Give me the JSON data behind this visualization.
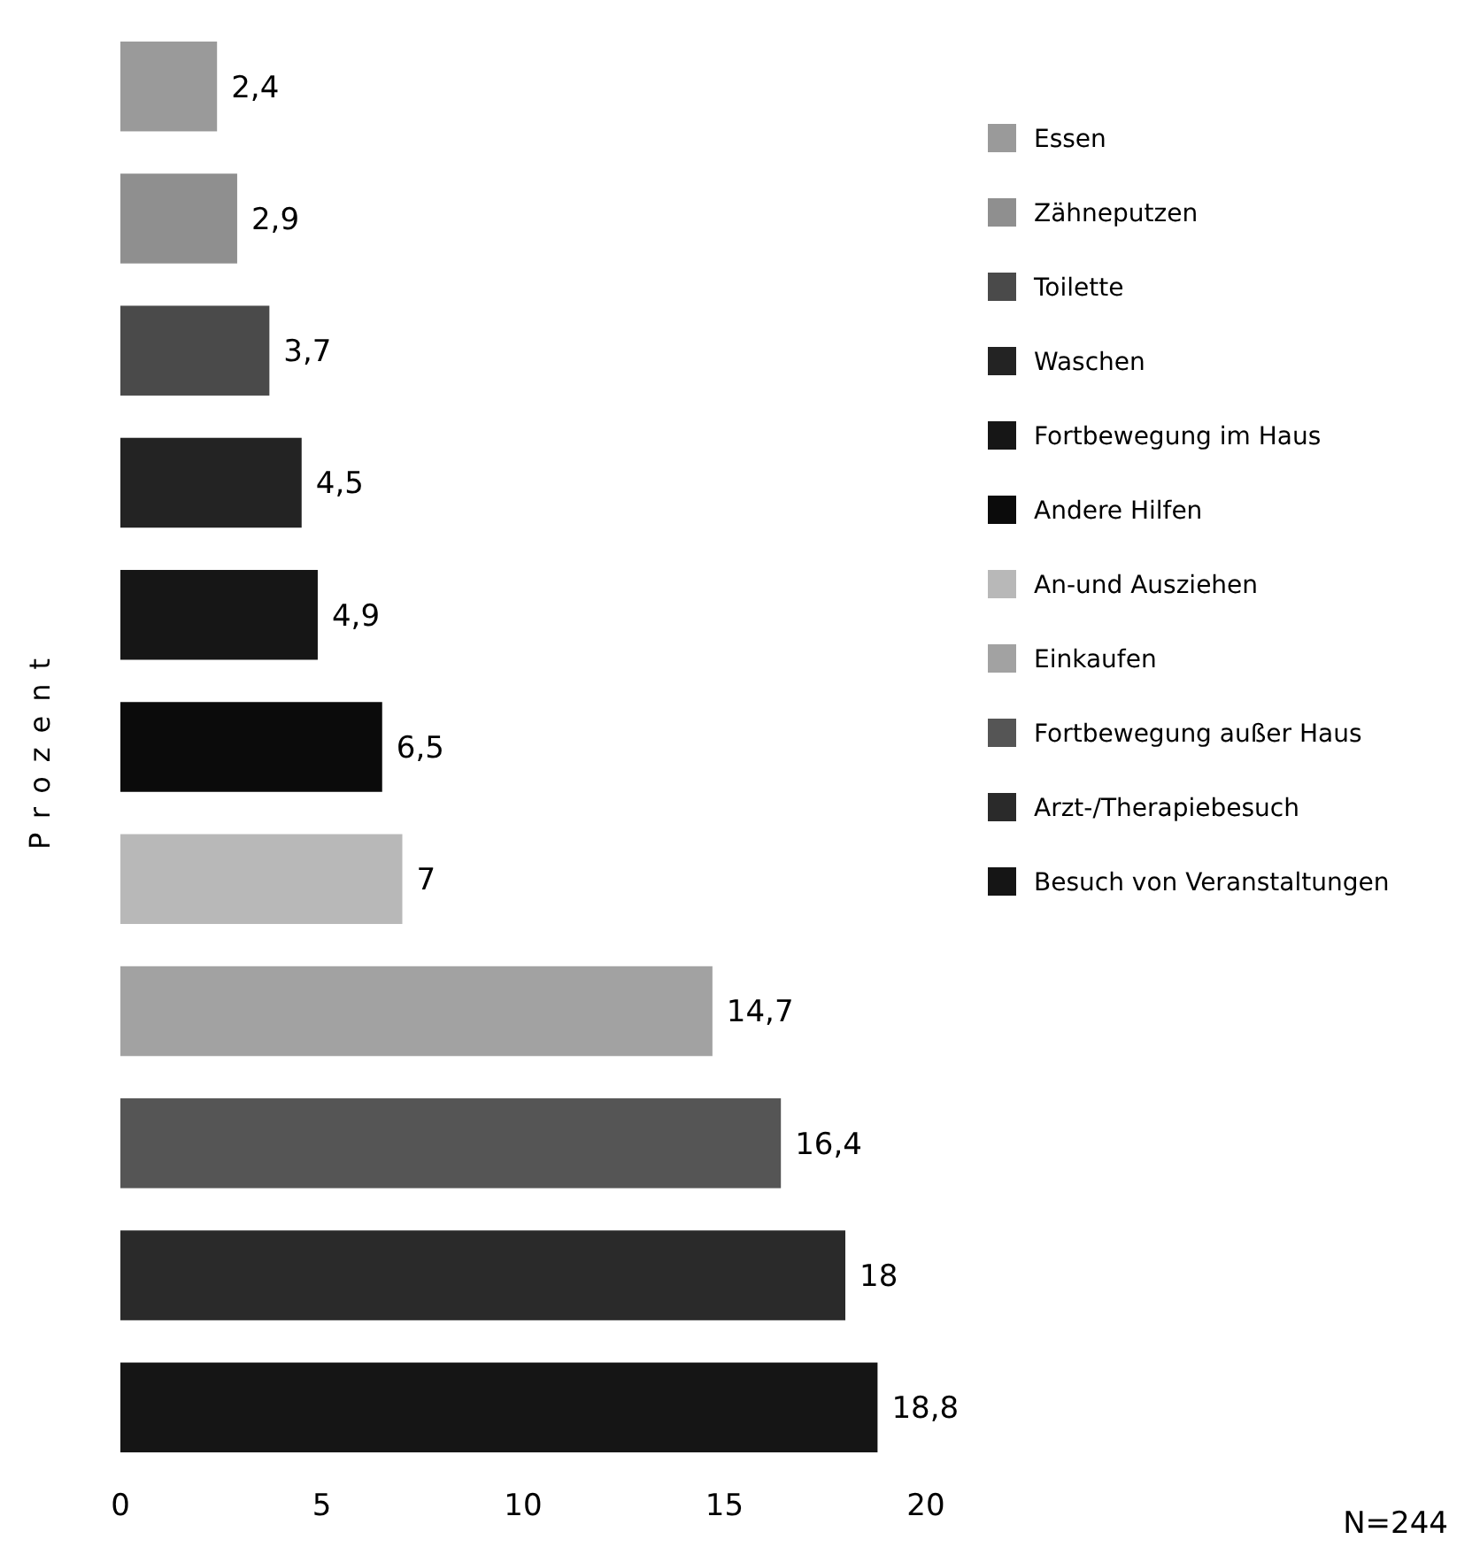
{
  "chart_data": {
    "type": "bar",
    "orientation": "horizontal",
    "stacked": true,
    "ylabel": "Prozent",
    "categories": [
      null,
      null,
      null,
      null,
      null,
      null,
      null,
      null,
      null,
      null,
      null
    ],
    "series": [
      {
        "name": "Essen",
        "color": "#9a9a9a",
        "values": [
          2.4,
          null,
          null,
          null,
          null,
          null,
          null,
          null,
          null,
          null,
          null
        ],
        "value_labels": [
          "2,4",
          null,
          null,
          null,
          null,
          null,
          null,
          null,
          null,
          null,
          null
        ]
      },
      {
        "name": "Zähneputzen",
        "color": "#8f8f8f",
        "values": [
          null,
          2.9,
          null,
          null,
          null,
          null,
          null,
          null,
          null,
          null,
          null
        ],
        "value_labels": [
          null,
          "2,9",
          null,
          null,
          null,
          null,
          null,
          null,
          null,
          null,
          null
        ]
      },
      {
        "name": "Toilette",
        "color": "#4a4a4a",
        "values": [
          null,
          null,
          3.7,
          null,
          null,
          null,
          null,
          null,
          null,
          null,
          null
        ],
        "value_labels": [
          null,
          null,
          "3,7",
          null,
          null,
          null,
          null,
          null,
          null,
          null,
          null
        ]
      },
      {
        "name": "Waschen",
        "color": "#232323",
        "values": [
          null,
          null,
          null,
          4.5,
          null,
          null,
          null,
          null,
          null,
          null,
          null
        ],
        "value_labels": [
          null,
          null,
          null,
          "4,5",
          null,
          null,
          null,
          null,
          null,
          null,
          null
        ]
      },
      {
        "name": "Fortbewegung im Haus",
        "color": "#161616",
        "values": [
          null,
          null,
          null,
          null,
          4.9,
          null,
          null,
          null,
          null,
          null,
          null
        ],
        "value_labels": [
          null,
          null,
          null,
          null,
          "4,9",
          null,
          null,
          null,
          null,
          null,
          null
        ]
      },
      {
        "name": "Andere Hilfen",
        "color": "#0b0b0b",
        "values": [
          null,
          null,
          null,
          null,
          null,
          6.5,
          null,
          null,
          null,
          null,
          null
        ],
        "value_labels": [
          null,
          null,
          null,
          null,
          null,
          "6,5",
          null,
          null,
          null,
          null,
          null
        ]
      },
      {
        "name": "An-und Ausziehen",
        "color": "#b8b8b8",
        "values": [
          null,
          null,
          null,
          null,
          null,
          null,
          7,
          null,
          null,
          null,
          null
        ],
        "value_labels": [
          null,
          null,
          null,
          null,
          null,
          null,
          "7",
          null,
          null,
          null,
          null
        ]
      },
      {
        "name": "Einkaufen",
        "color": "#a2a2a2",
        "values": [
          null,
          null,
          null,
          null,
          null,
          null,
          null,
          14.7,
          null,
          null,
          null
        ],
        "value_labels": [
          null,
          null,
          null,
          null,
          null,
          null,
          null,
          "14,7",
          null,
          null,
          null
        ]
      },
      {
        "name": "Fortbewegung außer Haus",
        "color": "#555555",
        "values": [
          null,
          null,
          null,
          null,
          null,
          null,
          null,
          null,
          16.4,
          null,
          null
        ],
        "value_labels": [
          null,
          null,
          null,
          null,
          null,
          null,
          null,
          null,
          "16,4",
          null,
          null
        ]
      },
      {
        "name": "Arzt-/Therapiebesuch",
        "color": "#2a2a2a",
        "values": [
          null,
          null,
          null,
          null,
          null,
          null,
          null,
          null,
          null,
          18,
          null
        ],
        "value_labels": [
          null,
          null,
          null,
          null,
          null,
          null,
          null,
          null,
          null,
          "18",
          null
        ]
      },
      {
        "name": "Besuch von Veranstaltungen",
        "color": "#151515",
        "values": [
          null,
          null,
          null,
          null,
          null,
          null,
          null,
          null,
          null,
          null,
          18.8
        ],
        "value_labels": [
          null,
          null,
          null,
          null,
          null,
          null,
          null,
          null,
          null,
          null,
          "18,8"
        ]
      }
    ],
    "xlim": [
      0,
      20
    ],
    "xticks": [
      0,
      5,
      10,
      15,
      20
    ],
    "legend": "right",
    "grid": false,
    "annotations": [
      "N=244"
    ]
  }
}
